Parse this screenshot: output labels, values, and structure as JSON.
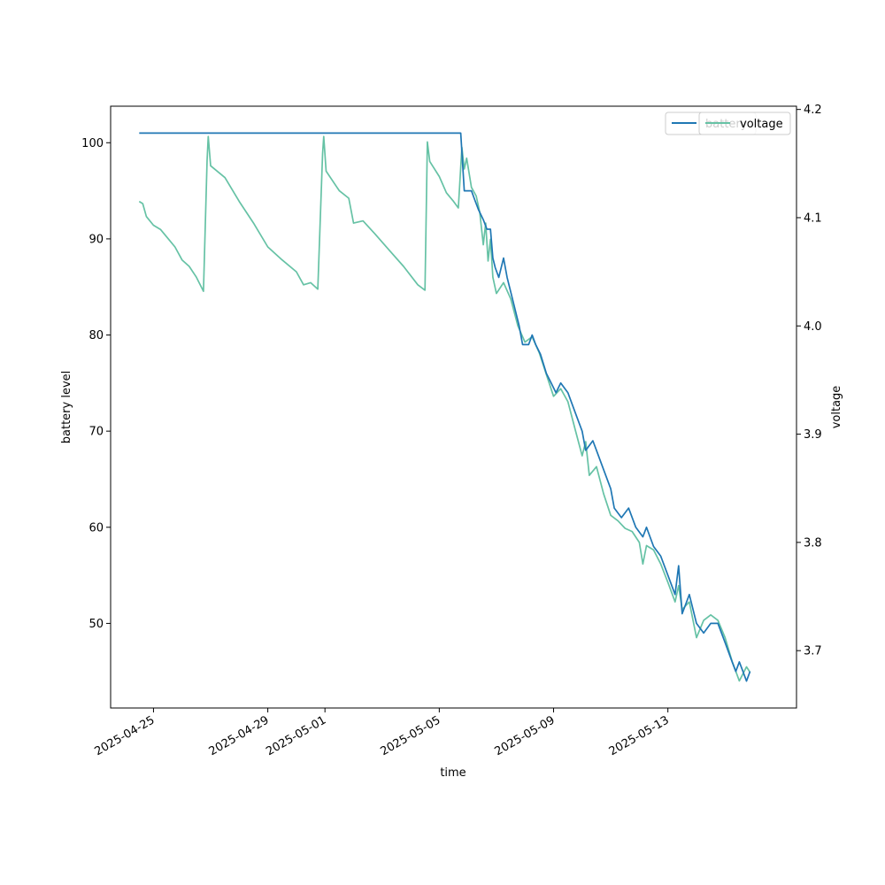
{
  "chart_data": {
    "type": "line",
    "xlabel": "time",
    "ylabel_left": "battery level",
    "ylabel_right": "voltage",
    "x_range": [
      "2025-04-23T12:00",
      "2025-05-17T12:00"
    ],
    "y_left_range": [
      41.2,
      103.8
    ],
    "y_right_range": [
      3.647,
      4.203
    ],
    "x_ticks": [
      "2025-04-25",
      "2025-04-29",
      "2025-05-01",
      "2025-05-05",
      "2025-05-09",
      "2025-05-13"
    ],
    "y_left_ticks": [
      50,
      60,
      70,
      80,
      90,
      100
    ],
    "y_right_ticks": [
      3.7,
      3.8,
      3.9,
      4.0,
      4.1,
      4.2
    ],
    "grid": false,
    "legend_placement": "top-right",
    "legends": [
      {
        "text": "battery",
        "color": "#1f77b4"
      },
      {
        "text": "voltage",
        "color": "#66c2a5"
      }
    ],
    "series": [
      {
        "name": "battery",
        "axis": "left",
        "color": "#1f77b4",
        "points": [
          [
            "2025-04-24T12:00",
            101
          ],
          [
            "2025-05-05T18:00",
            101
          ],
          [
            "2025-05-05T21:00",
            95
          ],
          [
            "2025-05-06T03:00",
            95
          ],
          [
            "2025-05-06T06:00",
            94
          ],
          [
            "2025-05-06T09:00",
            93
          ],
          [
            "2025-05-06T13:00",
            92
          ],
          [
            "2025-05-06T16:00",
            91
          ],
          [
            "2025-05-06T19:00",
            91
          ],
          [
            "2025-05-06T21:00",
            88
          ],
          [
            "2025-05-06T23:00",
            87
          ],
          [
            "2025-05-07T02:00",
            86
          ],
          [
            "2025-05-07T06:00",
            88
          ],
          [
            "2025-05-07T09:00",
            86
          ],
          [
            "2025-05-07T13:00",
            84
          ],
          [
            "2025-05-07T19:00",
            81
          ],
          [
            "2025-05-07T22:00",
            79
          ],
          [
            "2025-05-08T03:00",
            79
          ],
          [
            "2025-05-08T06:00",
            80
          ],
          [
            "2025-05-08T09:00",
            79
          ],
          [
            "2025-05-08T13:00",
            78
          ],
          [
            "2025-05-08T18:00",
            76
          ],
          [
            "2025-05-08T22:00",
            75
          ],
          [
            "2025-05-09T02:00",
            74
          ],
          [
            "2025-05-09T06:00",
            75
          ],
          [
            "2025-05-09T12:00",
            74
          ],
          [
            "2025-05-09T18:00",
            72
          ],
          [
            "2025-05-10T00:00",
            70
          ],
          [
            "2025-05-10T03:00",
            68
          ],
          [
            "2025-05-10T09:00",
            69
          ],
          [
            "2025-05-10T12:00",
            68
          ],
          [
            "2025-05-10T18:00",
            66
          ],
          [
            "2025-05-11T00:00",
            64
          ],
          [
            "2025-05-11T03:00",
            62
          ],
          [
            "2025-05-11T09:00",
            61
          ],
          [
            "2025-05-11T15:00",
            62
          ],
          [
            "2025-05-11T21:00",
            60
          ],
          [
            "2025-05-12T03:00",
            59
          ],
          [
            "2025-05-12T06:00",
            60
          ],
          [
            "2025-05-12T12:00",
            58
          ],
          [
            "2025-05-12T18:00",
            57
          ],
          [
            "2025-05-13T00:00",
            55
          ],
          [
            "2025-05-13T06:00",
            53
          ],
          [
            "2025-05-13T09:00",
            56
          ],
          [
            "2025-05-13T12:00",
            51
          ],
          [
            "2025-05-13T18:00",
            53
          ],
          [
            "2025-05-14T00:00",
            50
          ],
          [
            "2025-05-14T06:00",
            49
          ],
          [
            "2025-05-14T12:00",
            50
          ],
          [
            "2025-05-14T18:00",
            50
          ],
          [
            "2025-05-15T00:00",
            48
          ],
          [
            "2025-05-15T06:00",
            46
          ],
          [
            "2025-05-15T09:00",
            45
          ],
          [
            "2025-05-15T12:00",
            46
          ],
          [
            "2025-05-15T15:00",
            45
          ],
          [
            "2025-05-15T18:00",
            44
          ],
          [
            "2025-05-15T21:00",
            45
          ]
        ]
      },
      {
        "name": "voltage",
        "axis": "right",
        "color": "#66c2a5",
        "points": [
          [
            "2025-04-24T12:00",
            4.115
          ],
          [
            "2025-04-24T15:00",
            4.113
          ],
          [
            "2025-04-24T18:00",
            4.101
          ],
          [
            "2025-04-25T00:00",
            4.093
          ],
          [
            "2025-04-25T06:00",
            4.089
          ],
          [
            "2025-04-25T12:00",
            4.081
          ],
          [
            "2025-04-25T18:00",
            4.073
          ],
          [
            "2025-04-26T00:00",
            4.061
          ],
          [
            "2025-04-26T06:00",
            4.055
          ],
          [
            "2025-04-26T12:00",
            4.045
          ],
          [
            "2025-04-26T18:00",
            4.032
          ],
          [
            "2025-04-26T21:00",
            4.153
          ],
          [
            "2025-04-26T22:00",
            4.175
          ],
          [
            "2025-04-27T00:00",
            4.148
          ],
          [
            "2025-04-27T12:00",
            4.137
          ],
          [
            "2025-04-28T00:00",
            4.115
          ],
          [
            "2025-04-28T12:00",
            4.095
          ],
          [
            "2025-04-29T00:00",
            4.073
          ],
          [
            "2025-04-29T12:00",
            4.061
          ],
          [
            "2025-04-30T00:00",
            4.05
          ],
          [
            "2025-04-30T06:00",
            4.038
          ],
          [
            "2025-04-30T12:00",
            4.04
          ],
          [
            "2025-04-30T18:00",
            4.034
          ],
          [
            "2025-04-30T22:00",
            4.159
          ],
          [
            "2025-04-30T23:00",
            4.175
          ],
          [
            "2025-05-01T01:00",
            4.143
          ],
          [
            "2025-05-01T12:00",
            4.125
          ],
          [
            "2025-05-01T20:00",
            4.118
          ],
          [
            "2025-05-02T00:00",
            4.095
          ],
          [
            "2025-05-02T08:00",
            4.097
          ],
          [
            "2025-05-02T18:00",
            4.085
          ],
          [
            "2025-05-03T06:00",
            4.07
          ],
          [
            "2025-05-03T18:00",
            4.055
          ],
          [
            "2025-05-04T06:00",
            4.038
          ],
          [
            "2025-05-04T12:00",
            4.033
          ],
          [
            "2025-05-04T14:00",
            4.17
          ],
          [
            "2025-05-04T16:00",
            4.152
          ],
          [
            "2025-05-05T00:00",
            4.138
          ],
          [
            "2025-05-05T06:00",
            4.123
          ],
          [
            "2025-05-05T12:00",
            4.115
          ],
          [
            "2025-05-05T16:00",
            4.109
          ],
          [
            "2025-05-05T19:00",
            4.165
          ],
          [
            "2025-05-05T21:00",
            4.145
          ],
          [
            "2025-05-05T23:00",
            4.155
          ],
          [
            "2025-05-06T03:00",
            4.128
          ],
          [
            "2025-05-06T07:00",
            4.12
          ],
          [
            "2025-05-06T10:00",
            4.105
          ],
          [
            "2025-05-06T13:00",
            4.075
          ],
          [
            "2025-05-06T15:00",
            4.095
          ],
          [
            "2025-05-06T17:00",
            4.06
          ],
          [
            "2025-05-06T19:00",
            4.08
          ],
          [
            "2025-05-06T21:00",
            4.045
          ],
          [
            "2025-05-07T00:00",
            4.03
          ],
          [
            "2025-05-07T06:00",
            4.04
          ],
          [
            "2025-05-07T12:00",
            4.025
          ],
          [
            "2025-05-07T18:00",
            4.0
          ],
          [
            "2025-05-08T00:00",
            3.985
          ],
          [
            "2025-05-08T06:00",
            3.99
          ],
          [
            "2025-05-08T12:00",
            3.975
          ],
          [
            "2025-05-08T18:00",
            3.955
          ],
          [
            "2025-05-09T00:00",
            3.935
          ],
          [
            "2025-05-09T06:00",
            3.942
          ],
          [
            "2025-05-09T12:00",
            3.93
          ],
          [
            "2025-05-09T18:00",
            3.905
          ],
          [
            "2025-05-10T00:00",
            3.88
          ],
          [
            "2025-05-10T03:00",
            3.893
          ],
          [
            "2025-05-10T06:00",
            3.862
          ],
          [
            "2025-05-10T12:00",
            3.87
          ],
          [
            "2025-05-10T18:00",
            3.845
          ],
          [
            "2025-05-11T00:00",
            3.825
          ],
          [
            "2025-05-11T06:00",
            3.82
          ],
          [
            "2025-05-11T12:00",
            3.813
          ],
          [
            "2025-05-11T18:00",
            3.81
          ],
          [
            "2025-05-12T00:00",
            3.8
          ],
          [
            "2025-05-12T03:00",
            3.78
          ],
          [
            "2025-05-12T06:00",
            3.797
          ],
          [
            "2025-05-12T12:00",
            3.793
          ],
          [
            "2025-05-12T18:00",
            3.78
          ],
          [
            "2025-05-13T00:00",
            3.763
          ],
          [
            "2025-05-13T06:00",
            3.745
          ],
          [
            "2025-05-13T09:00",
            3.76
          ],
          [
            "2025-05-13T12:00",
            3.738
          ],
          [
            "2025-05-13T18:00",
            3.745
          ],
          [
            "2025-05-14T00:00",
            3.712
          ],
          [
            "2025-05-14T06:00",
            3.728
          ],
          [
            "2025-05-14T12:00",
            3.733
          ],
          [
            "2025-05-14T18:00",
            3.728
          ],
          [
            "2025-05-15T00:00",
            3.712
          ],
          [
            "2025-05-15T06:00",
            3.69
          ],
          [
            "2025-05-15T12:00",
            3.672
          ],
          [
            "2025-05-15T18:00",
            3.685
          ],
          [
            "2025-05-15T21:00",
            3.68
          ]
        ]
      }
    ]
  }
}
